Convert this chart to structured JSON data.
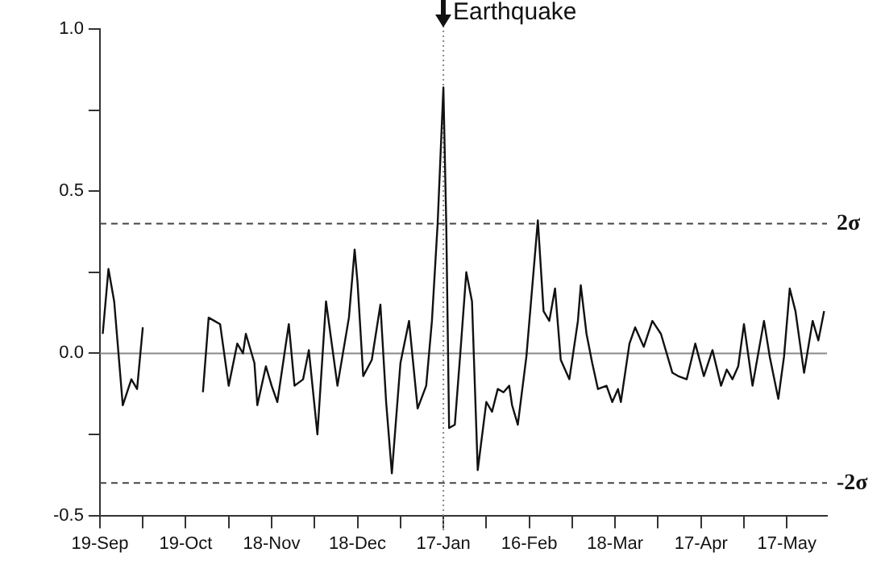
{
  "chart_data": {
    "type": "line",
    "categories": [
      "19-Sep",
      null,
      null,
      null,
      null,
      null,
      null,
      null,
      null,
      null,
      null,
      null,
      null,
      null,
      null,
      null,
      null,
      null,
      null,
      null,
      null,
      null,
      null,
      null,
      null,
      null,
      null,
      null,
      null,
      null,
      "19-Oct",
      null,
      null,
      null,
      null,
      null,
      null,
      null,
      null,
      null,
      null,
      null,
      null,
      null,
      null,
      null,
      null,
      null,
      null,
      null,
      null,
      null,
      null,
      null,
      null,
      null,
      null,
      null,
      null,
      null,
      "18-Nov",
      null,
      null,
      null,
      null,
      null,
      null,
      null,
      null,
      null,
      null,
      null,
      null,
      null,
      null,
      null,
      null,
      null,
      null,
      null,
      null,
      null,
      null,
      null,
      null,
      null,
      null,
      null,
      null,
      null,
      "18-Dec",
      null,
      null,
      null,
      null,
      null,
      null,
      null,
      null,
      null,
      null,
      null,
      null,
      null,
      null,
      null,
      null,
      null,
      null,
      null,
      null,
      null,
      null,
      null,
      null,
      null,
      null,
      null,
      null,
      null,
      "17-Jan",
      null,
      null,
      null,
      null,
      null,
      null,
      null,
      null,
      null,
      null,
      null,
      null,
      null,
      null,
      null,
      null,
      null,
      null,
      null,
      null,
      null,
      null,
      null,
      null,
      null,
      null,
      null,
      null,
      null,
      "16-Feb",
      null,
      null,
      null,
      null,
      null,
      null,
      null,
      null,
      null,
      null,
      null,
      null,
      null,
      null,
      null,
      null,
      null,
      null,
      null,
      null,
      null,
      null,
      null,
      null,
      null,
      null,
      null,
      null,
      null,
      "18-Mar",
      null,
      null,
      null,
      null,
      null,
      null,
      null,
      null,
      null,
      null,
      null,
      null,
      null,
      null,
      null,
      null,
      null,
      null,
      null,
      null,
      null,
      null,
      null,
      null,
      null,
      null,
      null,
      null,
      null,
      "17-Apr",
      null,
      null,
      null,
      null,
      null,
      null,
      null,
      null,
      null,
      null,
      null,
      null,
      null,
      null,
      null,
      null,
      null,
      null,
      null,
      null,
      null,
      null,
      null,
      null,
      null,
      null,
      null,
      null,
      null,
      "17-May",
      null,
      null,
      null,
      null,
      null,
      null,
      null,
      null,
      null,
      null,
      null,
      null,
      null,
      null
    ],
    "series": [
      {
        "color": "#111111",
        "values": [
          null,
          0.06,
          null,
          0.26,
          null,
          0.16,
          null,
          null,
          -0.16,
          null,
          null,
          -0.08,
          null,
          -0.11,
          null,
          0.08,
          null,
          null,
          null,
          null,
          null,
          null,
          null,
          null,
          null,
          null,
          null,
          null,
          null,
          null,
          null,
          null,
          null,
          null,
          null,
          null,
          null,
          null,
          null,
          null,
          null,
          null,
          null,
          null,
          null,
          null,
          null,
          null,
          null,
          null,
          null,
          null,
          null,
          null,
          null,
          null,
          null,
          null,
          null,
          null,
          null,
          null,
          null,
          null,
          null,
          null,
          null,
          null,
          null,
          null,
          null,
          null,
          null,
          null,
          null,
          null,
          null,
          null,
          null,
          null,
          null,
          null,
          null,
          null,
          null,
          null,
          null,
          null,
          null,
          null,
          null,
          null,
          null,
          null,
          null,
          null,
          null,
          null,
          null,
          null,
          null,
          null,
          null,
          null,
          null,
          null,
          null,
          null,
          null,
          null,
          null,
          null,
          null,
          null,
          null,
          null,
          null,
          null,
          null,
          null,
          null,
          null,
          null,
          null,
          null,
          null,
          null,
          null,
          null,
          null,
          null,
          null,
          null,
          null,
          null,
          null,
          null,
          null,
          null,
          null,
          null,
          null,
          null,
          null,
          null,
          null,
          null,
          null,
          null,
          null,
          null,
          null,
          null,
          null,
          null,
          null,
          null,
          null,
          null,
          null,
          null,
          null,
          null,
          null,
          null,
          null,
          null,
          null,
          null,
          null,
          null,
          null,
          null,
          null,
          null,
          null,
          null,
          null,
          null,
          null,
          null,
          null,
          null,
          null,
          null,
          null,
          null,
          null,
          null,
          null,
          null,
          null,
          null,
          null,
          null,
          null,
          null,
          null,
          null,
          null,
          null,
          null,
          null,
          null,
          null,
          null,
          null,
          null,
          null,
          null,
          null,
          null,
          null,
          null,
          null,
          null,
          null,
          null,
          null,
          null,
          null,
          null,
          null,
          null,
          null,
          null,
          null,
          null,
          null,
          null,
          null,
          null,
          null,
          null,
          null,
          null,
          null,
          null,
          null,
          null,
          null,
          null,
          null,
          null,
          null,
          null,
          null,
          null,
          null,
          null,
          null,
          null,
          null,
          null,
          null
        ]
      },
      {
        "color": "#111111",
        "values": [
          null,
          null,
          null,
          null,
          null,
          null,
          null,
          null,
          null,
          null,
          null,
          null,
          null,
          null,
          null,
          null,
          null,
          null,
          null,
          null,
          null,
          null,
          null,
          null,
          null,
          null,
          null,
          null,
          null,
          null,
          null,
          null,
          null,
          null,
          null,
          null,
          -0.12,
          null,
          0.11,
          null,
          0.1,
          null,
          0.09,
          null,
          null,
          -0.1,
          null,
          null,
          0.03,
          null,
          0,
          0.06,
          null,
          null,
          -0.03,
          -0.16,
          null,
          null,
          -0.04,
          null,
          -0.1,
          null,
          -0.15,
          null,
          null,
          null,
          0.09,
          null,
          -0.1,
          null,
          null,
          -0.08,
          null,
          0.01,
          null,
          null,
          -0.25,
          null,
          null,
          0.16,
          null,
          null,
          null,
          -0.1,
          null,
          null,
          null,
          0.11,
          null,
          0.32,
          0.22,
          null,
          -0.07,
          null,
          null,
          -0.02,
          null,
          null,
          0.15,
          null,
          -0.15,
          null,
          -0.37,
          null,
          null,
          -0.03,
          null,
          null,
          0.1,
          null,
          null,
          -0.17,
          null,
          null,
          -0.1,
          null,
          0.1,
          null,
          0.4,
          null,
          0.82,
          0.4,
          -0.23,
          null,
          -0.22,
          null,
          0.01,
          null,
          0.25,
          null,
          0.16,
          null,
          -0.36,
          null,
          null,
          -0.15,
          null,
          -0.18,
          null,
          -0.11,
          null,
          -0.12,
          null,
          -0.1,
          -0.16,
          null,
          -0.22,
          null,
          null,
          -0.01,
          null,
          null,
          null,
          0.41,
          null,
          0.13,
          null,
          0.1,
          null,
          0.2,
          null,
          -0.02,
          null,
          null,
          -0.08,
          null,
          null,
          0.1,
          0.21,
          null,
          0.06,
          null,
          -0.03,
          null,
          -0.11,
          null,
          null,
          -0.1,
          null,
          -0.15,
          null,
          -0.11,
          -0.15,
          null,
          null,
          0.03,
          null,
          0.08,
          null,
          null,
          0.02,
          null,
          null,
          0.1,
          null,
          null,
          0.06,
          null,
          null,
          null,
          -0.06,
          null,
          -0.07,
          null,
          null,
          -0.08,
          null,
          null,
          0.03,
          null,
          null,
          -0.07,
          null,
          null,
          0.01,
          null,
          null,
          -0.1,
          null,
          -0.05,
          null,
          -0.08,
          null,
          -0.04,
          null,
          0.09,
          null,
          null,
          -0.1,
          null,
          null,
          null,
          0.1,
          null,
          -0.01,
          null,
          null,
          -0.14,
          null,
          -0.01,
          null,
          0.2,
          null,
          0.13,
          null,
          null,
          -0.06,
          null,
          null,
          0.1,
          null,
          0.04,
          null,
          0.13,
          null
        ]
      }
    ],
    "ylim": [
      -0.5,
      1.0
    ],
    "yticks": [
      {
        "value": -0.5,
        "label": "-0.5"
      },
      {
        "value": -0.25,
        "label": null
      },
      {
        "value": 0,
        "label": "0.0"
      },
      {
        "value": 0.25,
        "label": null
      },
      {
        "value": 0.5,
        "label": "0.5"
      },
      {
        "value": 0.75,
        "label": null
      },
      {
        "value": 1.0,
        "label": "1.0"
      }
    ],
    "ref_lines": [
      {
        "axis": "y",
        "value": 0,
        "label": null,
        "color": "#888888",
        "line_style": "solid"
      },
      {
        "axis": "y",
        "value": 0.4,
        "label": "2σ",
        "color": "#444444",
        "line_style": "dashed"
      },
      {
        "axis": "y",
        "value": -0.4,
        "label": "-2σ",
        "color": "#444444",
        "line_style": "dashed"
      },
      {
        "axis": "x",
        "value": "17-Jan",
        "label": "Earthquake",
        "color": "#888888",
        "line_style": "dotted"
      }
    ],
    "grid": false,
    "legend": false,
    "marker": "none",
    "line_style": "solid"
  }
}
